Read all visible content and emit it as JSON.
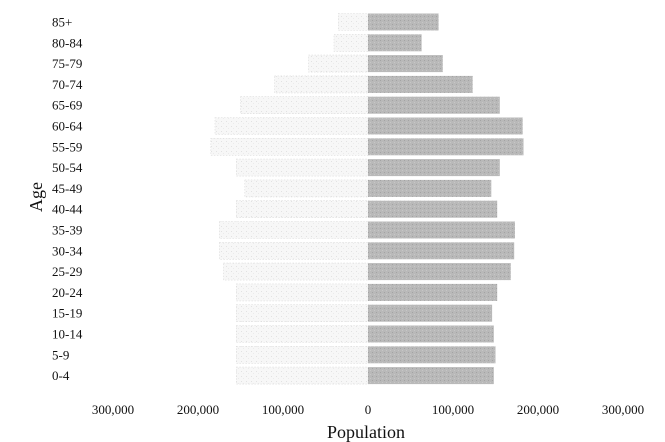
{
  "chart_data": {
    "type": "bar",
    "orientation": "horizontal",
    "title": "",
    "xlabel": "Population",
    "ylabel": "Age",
    "categories": [
      "85+",
      "80-84",
      "75-79",
      "70-74",
      "65-69",
      "60-64",
      "55-59",
      "50-54",
      "45-49",
      "40-44",
      "35-39",
      "30-34",
      "25-29",
      "20-24",
      "15-19",
      "10-14",
      "5-9",
      "0-4"
    ],
    "xlim": [
      -300000,
      300000
    ],
    "x_ticks": [
      -300000,
      -200000,
      -100000,
      0,
      100000,
      200000,
      300000
    ],
    "x_tick_labels": [
      "300,000",
      "200,000",
      "100,000",
      "0",
      "100,000",
      "200,000",
      "300,000"
    ],
    "series": [
      {
        "values": [
          -35000,
          -40000,
          -70000,
          -110000,
          -150000,
          -180000,
          -185000,
          -155000,
          -145000,
          -155000,
          -175000,
          -175000,
          -170000,
          -155000,
          -155000,
          -155000,
          -155000,
          -155000
        ],
        "color": "#f4f4f4"
      },
      {
        "values": [
          83000,
          63000,
          88000,
          123000,
          155000,
          182000,
          183000,
          155000,
          145000,
          152000,
          173000,
          172000,
          168000,
          152000,
          146000,
          148000,
          150000,
          148000
        ],
        "color": "#b5b5b5"
      }
    ],
    "grid": false,
    "legend": "none"
  }
}
